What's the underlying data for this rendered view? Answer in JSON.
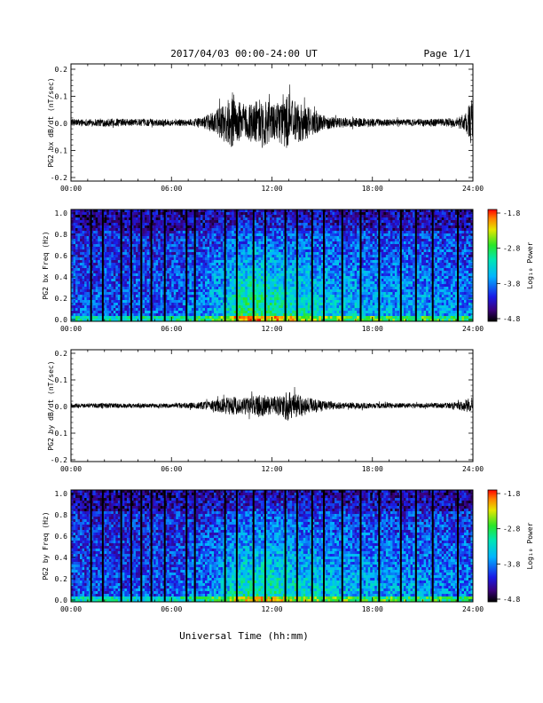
{
  "header": {
    "title": "2017/04/03  00:00-24:00 UT",
    "page": "Page 1/1"
  },
  "xaxis": {
    "title": "Universal Time (hh:mm)",
    "range_hours": [
      0,
      24
    ],
    "ticks": [
      "00:00",
      "06:00",
      "12:00",
      "18:00",
      "24:00"
    ]
  },
  "colorbar": {
    "label": "Log₁₀ Power",
    "ticks": [
      "-1.8",
      "-2.8",
      "-3.8",
      "-4.8"
    ],
    "range": [
      -4.8,
      -1.8
    ]
  },
  "chart_data": [
    {
      "type": "line",
      "ylabel": "PG2 bx dB/dt (nT/sec)",
      "ylim": [
        -0.2,
        0.2
      ],
      "yticks": [
        "0.2",
        "0.1",
        "0.0",
        "-0.1",
        "-0.2"
      ],
      "envelope": {
        "t_hours": [
          0,
          1,
          2,
          3,
          4,
          5,
          6,
          7,
          7.8,
          8.5,
          9,
          9.5,
          10,
          10.5,
          11,
          11.5,
          12,
          12.5,
          13,
          13.5,
          14,
          14.5,
          15,
          16,
          17,
          18,
          19,
          20,
          21,
          22,
          23,
          23.5,
          24
        ],
        "amplitude": [
          0.012,
          0.012,
          0.014,
          0.013,
          0.012,
          0.012,
          0.011,
          0.012,
          0.015,
          0.035,
          0.06,
          0.085,
          0.075,
          0.06,
          0.075,
          0.09,
          0.06,
          0.07,
          0.1,
          0.07,
          0.06,
          0.04,
          0.025,
          0.018,
          0.016,
          0.014,
          0.012,
          0.012,
          0.012,
          0.013,
          0.015,
          0.03,
          0.09
        ]
      }
    },
    {
      "type": "heatmap",
      "ylabel": "PG2 bx Freq (Hz)",
      "ylim": [
        0.0,
        1.0
      ],
      "yticks": [
        "1.0",
        "0.8",
        "0.6",
        "0.4",
        "0.2",
        "0.0"
      ],
      "gap_times_hours": [
        1.2,
        1.9,
        3.0,
        3.6,
        4.2,
        4.8,
        5.6,
        6.9,
        7.4,
        9.2,
        9.9,
        10.9,
        11.6,
        12.8,
        13.5,
        14.4,
        15.1,
        16.2,
        17.3,
        18.4,
        19.7,
        20.6,
        21.6,
        23.1
      ],
      "activity": {
        "t_hours": [
          0,
          3,
          6,
          8,
          9,
          10,
          11,
          12,
          13,
          14,
          15,
          16,
          18,
          20,
          22,
          24
        ],
        "level": [
          0.12,
          0.12,
          0.14,
          0.22,
          0.35,
          0.55,
          0.62,
          0.55,
          0.5,
          0.46,
          0.4,
          0.35,
          0.3,
          0.28,
          0.25,
          0.22
        ]
      }
    },
    {
      "type": "line",
      "ylabel": "PG2 by dB/dt (nT/sec)",
      "ylim": [
        -0.2,
        0.2
      ],
      "yticks": [
        "0.2",
        "0.1",
        "0.0",
        "-0.1",
        "-0.2"
      ],
      "envelope": {
        "t_hours": [
          0,
          1,
          2,
          3,
          4,
          5,
          6,
          7,
          8,
          9,
          9.5,
          10,
          10.5,
          11,
          11.5,
          12,
          12.5,
          13,
          13.5,
          14,
          14.5,
          15,
          16,
          17,
          18,
          19,
          20,
          21,
          22,
          23,
          23.5,
          24
        ],
        "amplitude": [
          0.008,
          0.008,
          0.009,
          0.008,
          0.008,
          0.008,
          0.008,
          0.01,
          0.014,
          0.025,
          0.035,
          0.03,
          0.03,
          0.035,
          0.04,
          0.03,
          0.04,
          0.055,
          0.04,
          0.035,
          0.025,
          0.018,
          0.012,
          0.011,
          0.01,
          0.009,
          0.009,
          0.009,
          0.01,
          0.012,
          0.02,
          0.035
        ]
      }
    },
    {
      "type": "heatmap",
      "ylabel": "PG2 by Freq (Hz)",
      "ylim": [
        0.0,
        1.0
      ],
      "yticks": [
        "1.0",
        "0.8",
        "0.6",
        "0.4",
        "0.2",
        "0.0"
      ],
      "gap_times_hours": [
        1.2,
        1.9,
        3.0,
        3.6,
        4.2,
        4.8,
        5.6,
        6.9,
        7.4,
        9.2,
        9.9,
        10.9,
        11.6,
        12.8,
        13.5,
        14.4,
        15.1,
        16.2,
        17.3,
        18.4,
        19.7,
        20.6,
        21.6,
        23.1
      ],
      "activity": {
        "t_hours": [
          0,
          3,
          6,
          8,
          9,
          10,
          11,
          12,
          13,
          14,
          15,
          16,
          18,
          20,
          22,
          24
        ],
        "level": [
          0.1,
          0.1,
          0.12,
          0.2,
          0.3,
          0.48,
          0.52,
          0.48,
          0.45,
          0.42,
          0.38,
          0.33,
          0.3,
          0.27,
          0.24,
          0.2
        ]
      }
    }
  ]
}
